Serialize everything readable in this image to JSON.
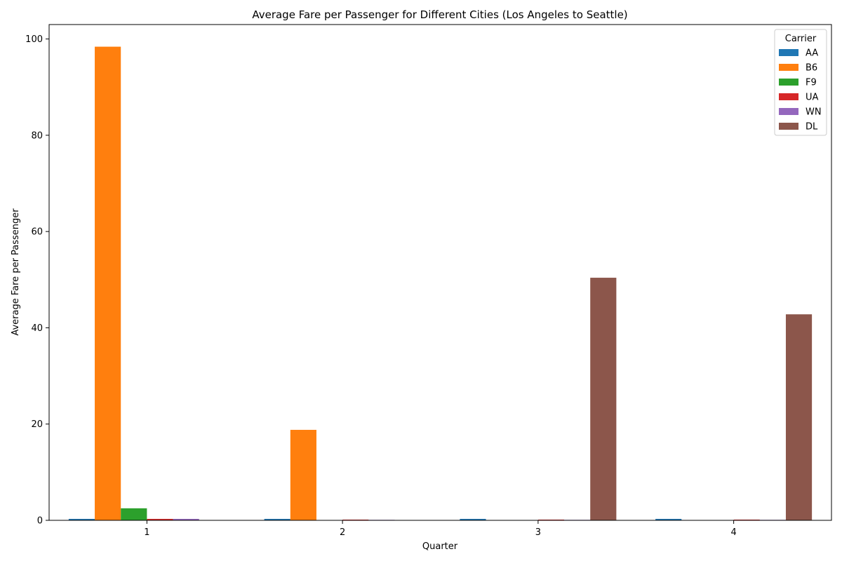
{
  "chart_data": {
    "type": "bar",
    "title": "Average Fare per Passenger for Different Cities (Los Angeles to Seattle)",
    "xlabel": "Quarter",
    "ylabel": "Average Fare per Passenger",
    "categories": [
      "1",
      "2",
      "3",
      "4"
    ],
    "ylim": [
      0,
      103
    ],
    "yticks": [
      0,
      20,
      40,
      60,
      80,
      100
    ],
    "grid": false,
    "legend": {
      "title": "Carrier",
      "placement": "top-right"
    },
    "series": [
      {
        "name": "AA",
        "color": "#1f77b4",
        "values": [
          0.3,
          0.3,
          0.3,
          0.3
        ]
      },
      {
        "name": "B6",
        "color": "#ff7f0e",
        "values": [
          98.4,
          18.8,
          0,
          0
        ]
      },
      {
        "name": "F9",
        "color": "#2ca02c",
        "values": [
          2.5,
          0,
          0,
          0
        ]
      },
      {
        "name": "UA",
        "color": "#d62728",
        "values": [
          0.3,
          0.15,
          0.15,
          0.15
        ]
      },
      {
        "name": "WN",
        "color": "#9467bd",
        "values": [
          0.3,
          0.1,
          0.1,
          0.1
        ]
      },
      {
        "name": "DL",
        "color": "#8c564b",
        "values": [
          0,
          0,
          50.4,
          42.8
        ]
      }
    ]
  }
}
